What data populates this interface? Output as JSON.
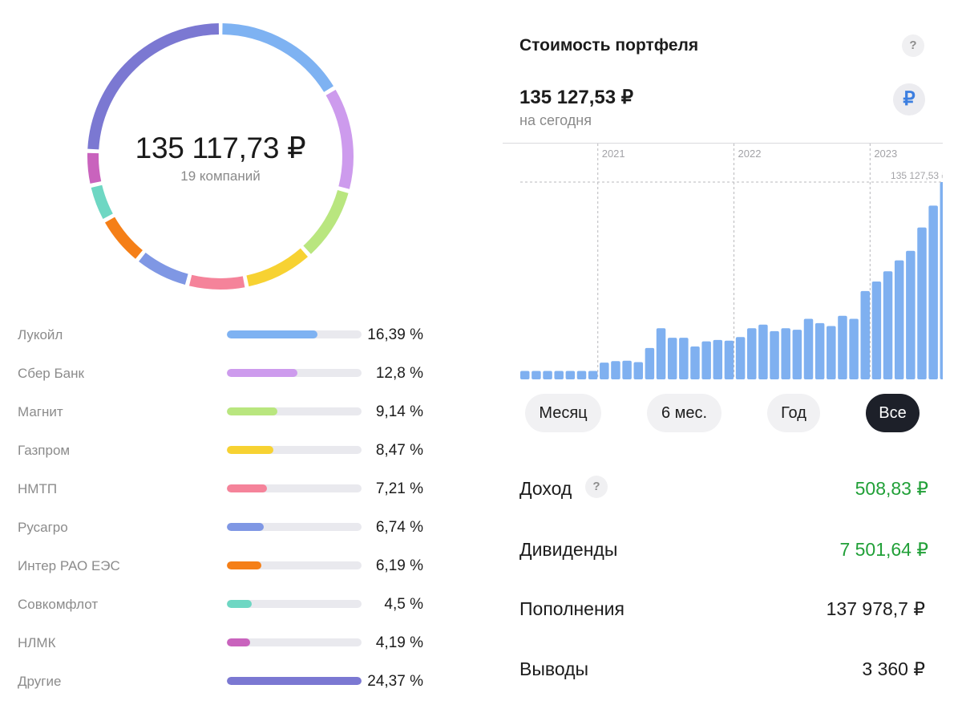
{
  "donut": {
    "total": "135 117,73 ₽",
    "companies": "19 компаний"
  },
  "holdings": [
    {
      "name": "Лукойл",
      "percent_label": "16,39 %",
      "share": 16.39,
      "color": "#7eb2f2"
    },
    {
      "name": "Сбер Банк",
      "percent_label": "12,8 %",
      "share": 12.8,
      "color": "#cd9bed"
    },
    {
      "name": "Магнит",
      "percent_label": "9,14 %",
      "share": 9.14,
      "color": "#b9e67f"
    },
    {
      "name": "Газпром",
      "percent_label": "8,47 %",
      "share": 8.47,
      "color": "#f7d232"
    },
    {
      "name": "НМТП",
      "percent_label": "7,21 %",
      "share": 7.21,
      "color": "#f5839a"
    },
    {
      "name": "Русагро",
      "percent_label": "6,74 %",
      "share": 6.74,
      "color": "#7f97e4"
    },
    {
      "name": "Интер РАО ЕЭС",
      "percent_label": "6,19 %",
      "share": 6.19,
      "color": "#f57f17"
    },
    {
      "name": "Совкомфлот",
      "percent_label": "4,5 %",
      "share": 4.5,
      "color": "#6ed7c3"
    },
    {
      "name": "НЛМК",
      "percent_label": "4,19 %",
      "share": 4.19,
      "color": "#c963bd"
    },
    {
      "name": "Другие",
      "percent_label": "24,37 %",
      "share": 24.37,
      "color": "#7b78d2"
    }
  ],
  "portfolio": {
    "title": "Стоимость портфеля",
    "help_icon": "?",
    "value": "135 127,53 ₽",
    "value_sub": "на сегодня",
    "currency_symbol": "₽"
  },
  "chart_data": {
    "type": "bar",
    "year_labels": [
      "2021",
      "2022",
      "2023"
    ],
    "max_label": "135 127,53 ₽",
    "ylim": [
      0,
      135127.53
    ],
    "bar_color": "#7fb0f0",
    "values": [
      5800,
      5800,
      5800,
      5800,
      5800,
      5800,
      5800,
      11500,
      12500,
      12800,
      11800,
      21500,
      35000,
      28500,
      28500,
      22500,
      26000,
      27000,
      26500,
      29000,
      35000,
      37500,
      33000,
      35000,
      34000,
      41500,
      38500,
      36500,
      43500,
      41500,
      60500,
      67000,
      74000,
      81500,
      88000,
      104000,
      119000,
      135127.53
    ],
    "year_start_index": [
      7,
      19,
      31
    ]
  },
  "periods": [
    {
      "label": "Месяц",
      "active": false
    },
    {
      "label": "6 мес.",
      "active": false
    },
    {
      "label": "Год",
      "active": false
    },
    {
      "label": "Все",
      "active": true
    }
  ],
  "stats": {
    "income_label": "Доход",
    "income_value": "508,83 ₽",
    "dividends_label": "Дивиденды",
    "dividends_value": "7 501,64 ₽",
    "deposits_label": "Пополнения",
    "deposits_value": "137 978,7 ₽",
    "withdrawals_label": "Выводы",
    "withdrawals_value": "3 360 ₽",
    "positive_color": "#21a038"
  }
}
